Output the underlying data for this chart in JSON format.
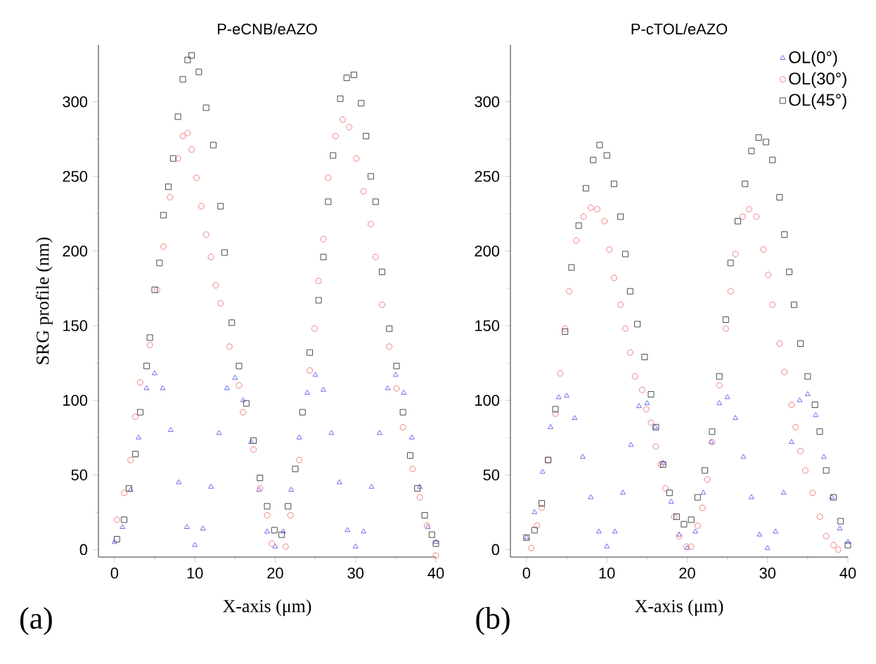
{
  "chart_data": [
    {
      "type": "scatter",
      "title": "P-eCNB/eAZO",
      "xlabel": "X-axis (μm)",
      "ylabel": "SRG profile (nm)",
      "xlim": [
        -2,
        40
      ],
      "ylim": [
        -5,
        338
      ],
      "xticks": [
        0,
        10,
        20,
        30,
        40
      ],
      "yticks": [
        0,
        50,
        100,
        150,
        200,
        250,
        300
      ],
      "annotations": [
        "(a)"
      ],
      "series": [
        {
          "color": "#6a6af0",
          "marker": "triangle",
          "x": [
            0,
            1,
            2,
            3,
            4,
            5,
            6,
            7,
            8,
            9,
            10,
            11,
            12,
            13,
            14,
            15,
            16,
            17,
            18,
            19,
            20,
            21,
            22,
            23,
            24,
            25,
            26,
            27,
            28,
            29,
            30,
            31,
            32,
            33,
            34,
            35,
            36,
            37,
            38,
            39,
            40
          ],
          "values": [
            5,
            15,
            40,
            75,
            108,
            118,
            108,
            80,
            45,
            15,
            3,
            14,
            42,
            78,
            108,
            115,
            100,
            72,
            40,
            12,
            2,
            12,
            40,
            75,
            105,
            117,
            107,
            78,
            45,
            13,
            2,
            12,
            42,
            78,
            108,
            117,
            105,
            75,
            42,
            15,
            5
          ]
        },
        {
          "color": "#f07a7a",
          "marker": "circle",
          "x": [
            0.3,
            1.2,
            2,
            2.6,
            3.2,
            4.4,
            5.3,
            6.1,
            6.9,
            7.9,
            8.5,
            9.1,
            9.6,
            10.2,
            10.8,
            11.4,
            12,
            12.6,
            13.2,
            14.3,
            15.5,
            16,
            17.3,
            18.1,
            19,
            19.6,
            21.3,
            21.9,
            23,
            24.3,
            24.9,
            25.4,
            26,
            26.6,
            27.5,
            28.4,
            29.2,
            30.1,
            31,
            31.9,
            32.5,
            33.3,
            34.2,
            35.1,
            35.9,
            37.1,
            38,
            38.9,
            40
          ],
          "values": [
            20,
            38,
            60,
            89,
            112,
            137,
            174,
            203,
            236,
            262,
            277,
            279,
            268,
            249,
            230,
            211,
            196,
            177,
            165,
            136,
            110,
            92,
            67,
            41,
            23,
            4,
            2,
            23,
            60,
            120,
            148,
            180,
            208,
            249,
            277,
            288,
            283,
            262,
            240,
            218,
            196,
            164,
            136,
            108,
            82,
            54,
            35,
            16,
            -4
          ]
        },
        {
          "color": "#4a4a4a",
          "marker": "square",
          "x": [
            0.3,
            1.2,
            1.8,
            2.6,
            3.2,
            4,
            4.4,
            5,
            5.6,
            6.1,
            6.7,
            7.3,
            7.9,
            8.5,
            9.1,
            9.6,
            10.5,
            11.4,
            12.3,
            13.2,
            13.7,
            14.6,
            15.5,
            16.4,
            17.3,
            18.1,
            19,
            19.9,
            20.8,
            21.6,
            22.5,
            23.4,
            24.3,
            25.4,
            26,
            26.6,
            27.2,
            28.1,
            28.9,
            29.8,
            30.7,
            31.3,
            31.9,
            32.5,
            33.3,
            34.2,
            35.1,
            35.9,
            36.8,
            37.7,
            38.6,
            39.5,
            40
          ],
          "values": [
            7,
            20,
            41,
            64,
            92,
            123,
            142,
            174,
            192,
            224,
            243,
            262,
            290,
            315,
            328,
            331,
            320,
            296,
            271,
            230,
            199,
            152,
            123,
            98,
            73,
            48,
            29,
            13,
            10,
            29,
            54,
            92,
            132,
            167,
            196,
            233,
            264,
            302,
            316,
            318,
            299,
            277,
            250,
            233,
            186,
            148,
            123,
            92,
            63,
            41,
            23,
            10,
            4
          ]
        }
      ]
    },
    {
      "type": "scatter",
      "title": "P-cTOL/eAZO",
      "xlabel": "X-axis (μm)",
      "xlim": [
        -2,
        40
      ],
      "ylim": [
        -5,
        338
      ],
      "xticks": [
        0,
        10,
        20,
        30,
        40
      ],
      "yticks": [
        0,
        50,
        100,
        150,
        200,
        250,
        300
      ],
      "annotations": [
        "(b)"
      ],
      "legend": "top right",
      "series": [
        {
          "name": "OL(0°)",
          "color": "#6a6af0",
          "marker": "triangle",
          "x": [
            0,
            1,
            2,
            3,
            4,
            5,
            6,
            7,
            8,
            9,
            10,
            11,
            12,
            13,
            14,
            15,
            16,
            17,
            18,
            19,
            20,
            21,
            22,
            23,
            24,
            25,
            26,
            27,
            28,
            29,
            30,
            31,
            32,
            33,
            34,
            35,
            36,
            37,
            38,
            39,
            40
          ],
          "values": [
            8,
            25,
            52,
            82,
            102,
            103,
            88,
            62,
            35,
            12,
            2,
            12,
            38,
            70,
            96,
            98,
            82,
            58,
            32,
            10,
            1,
            12,
            38,
            72,
            98,
            102,
            88,
            62,
            35,
            10,
            1,
            12,
            38,
            72,
            100,
            104,
            90,
            62,
            35,
            14,
            5
          ]
        },
        {
          "name": "OL(30°)",
          "color": "#f07a7a",
          "marker": "circle",
          "x": [
            0.6,
            1.3,
            1.9,
            2.7,
            3.6,
            4.2,
            4.8,
            5.3,
            6.2,
            7.1,
            8,
            8.8,
            9.7,
            10.3,
            10.9,
            11.7,
            12.3,
            12.9,
            13.5,
            14.4,
            14.9,
            15.5,
            16.1,
            16.7,
            17.3,
            18.4,
            19,
            19.9,
            20.5,
            21.3,
            21.9,
            22.5,
            23.1,
            24,
            24.8,
            25.4,
            26,
            26.9,
            27.7,
            28.6,
            29.5,
            30.1,
            30.6,
            31.5,
            32.1,
            33,
            33.5,
            34.1,
            34.7,
            35.6,
            36.5,
            37.3,
            38.2,
            38.8
          ],
          "values": [
            1,
            16,
            28,
            60,
            91,
            118,
            148,
            173,
            207,
            223,
            229,
            228,
            220,
            201,
            182,
            164,
            148,
            132,
            116,
            107,
            94,
            85,
            69,
            57,
            41,
            22,
            9,
            2,
            2,
            16,
            28,
            47,
            72,
            110,
            148,
            173,
            198,
            223,
            228,
            223,
            201,
            184,
            164,
            138,
            119,
            97,
            82,
            66,
            53,
            38,
            22,
            9,
            3,
            0
          ]
        },
        {
          "name": "OL(45°)",
          "color": "#4a4a4a",
          "marker": "square",
          "x": [
            0,
            1,
            1.9,
            2.7,
            3.6,
            4.8,
            5.6,
            6.5,
            7.4,
            8.3,
            9.1,
            10,
            10.9,
            11.7,
            12.3,
            12.9,
            13.8,
            14.7,
            15.5,
            16.1,
            17,
            17.8,
            18.7,
            19.6,
            20.5,
            21.3,
            22.2,
            23.1,
            24,
            24.8,
            25.4,
            26.3,
            27.2,
            28,
            28.9,
            29.8,
            30.6,
            31.5,
            32.1,
            32.7,
            33.3,
            34.1,
            35,
            35.9,
            36.5,
            37.3,
            38.2,
            39.1,
            40
          ],
          "values": [
            8,
            13,
            31,
            60,
            94,
            146,
            189,
            217,
            242,
            261,
            271,
            264,
            245,
            223,
            198,
            173,
            151,
            129,
            104,
            82,
            57,
            38,
            22,
            17,
            20,
            35,
            53,
            79,
            116,
            154,
            192,
            220,
            245,
            267,
            276,
            273,
            261,
            236,
            211,
            186,
            164,
            138,
            116,
            97,
            79,
            53,
            35,
            19,
            3
          ]
        }
      ]
    }
  ]
}
